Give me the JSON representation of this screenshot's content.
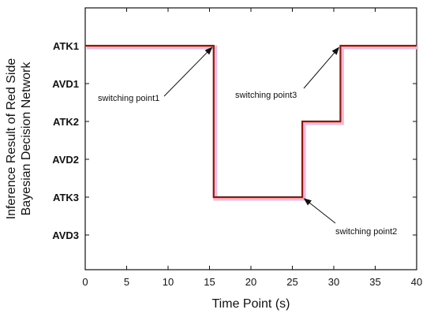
{
  "chart_data": {
    "type": "line",
    "title": "",
    "xlabel": "Time Point (s)",
    "ylabel_line1": "Inference Result of Red Side",
    "ylabel_line2": "Bayesian Decision Network",
    "xlim": [
      0,
      40
    ],
    "xticks": [
      0,
      5,
      10,
      15,
      20,
      25,
      30,
      35,
      40
    ],
    "ycategories": [
      "ATK1",
      "AVD1",
      "ATK2",
      "AVD2",
      "ATK3",
      "AVD3"
    ],
    "grid": false,
    "series": [
      {
        "color": "#8b1a0e",
        "shadow_color": "#f2b8d8",
        "x": [
          0,
          15.5,
          15.5,
          26.2,
          26.2,
          30.8,
          30.8,
          40
        ],
        "y": [
          "ATK1",
          "ATK1",
          "ATK3",
          "ATK3",
          "ATK2",
          "ATK2",
          "ATK1",
          "ATK1"
        ]
      }
    ],
    "annotations": [
      {
        "text": "switching point1",
        "point": [
          15.5,
          "ATK1"
        ]
      },
      {
        "text": "switching point2",
        "point": [
          26.2,
          "ATK3"
        ]
      },
      {
        "text": "switching point3",
        "point": [
          30.8,
          "ATK1"
        ]
      }
    ]
  }
}
